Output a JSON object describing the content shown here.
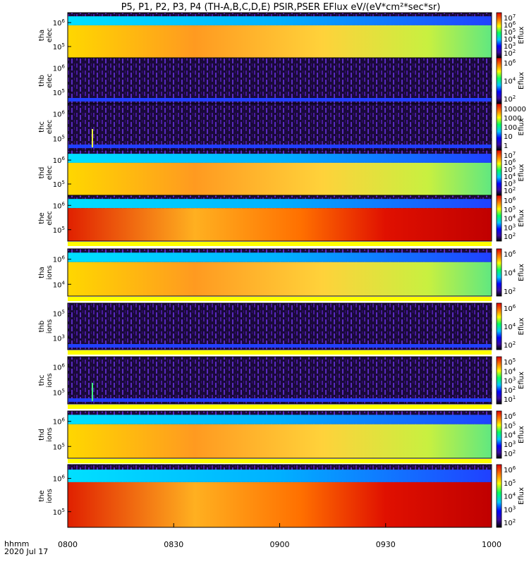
{
  "title": "P5, P1, P2, P3, P4 (TH-A,B,C,D,E) PSIR,PSER EFlux eV/(eV*cm²*sec*sr)",
  "x_axis": {
    "label_top": "hhmm",
    "label_bottom": "2020 Jul 17",
    "tick_labels": [
      "0800",
      "0830",
      "0900",
      "0930",
      "1000"
    ]
  },
  "chart_data": {
    "type": "heatmap",
    "x_range": [
      "08:00",
      "10:00"
    ],
    "colorbar_label": "Eflux",
    "panels": [
      {
        "label1": "tha",
        "label2": "elec",
        "y_ticks": [
          {
            "base": "10",
            "exp": "6"
          },
          {
            "base": "10",
            "exp": "5"
          }
        ],
        "cbar_ticks": [
          {
            "base": "10",
            "exp": "7"
          },
          {
            "base": "10",
            "exp": "6"
          },
          {
            "base": "10",
            "exp": "5"
          },
          {
            "base": "10",
            "exp": "4"
          },
          {
            "base": "10",
            "exp": "3"
          },
          {
            "base": "10",
            "exp": "2"
          }
        ],
        "bright": true
      },
      {
        "label1": "thb",
        "label2": "elec",
        "y_ticks": [
          {
            "base": "10",
            "exp": "6"
          },
          {
            "base": "10",
            "exp": "5"
          }
        ],
        "cbar_ticks": [
          {
            "base": "10",
            "exp": "6"
          },
          {
            "base": "10",
            "exp": "4"
          },
          {
            "base": "10",
            "exp": "2"
          }
        ],
        "bright": false
      },
      {
        "label1": "thc",
        "label2": "elec",
        "y_ticks": [
          {
            "base": "10",
            "exp": "6"
          },
          {
            "base": "10",
            "exp": "5"
          }
        ],
        "cbar_ticks": [
          {
            "base": "10000",
            "exp": ""
          },
          {
            "base": "1000",
            "exp": ""
          },
          {
            "base": "100",
            "exp": ""
          },
          {
            "base": "10",
            "exp": ""
          },
          {
            "base": "1",
            "exp": ""
          }
        ],
        "bright": false,
        "spike": true
      },
      {
        "label1": "thd",
        "label2": "elec",
        "y_ticks": [
          {
            "base": "10",
            "exp": "6"
          },
          {
            "base": "10",
            "exp": "5"
          }
        ],
        "cbar_ticks": [
          {
            "base": "10",
            "exp": "7"
          },
          {
            "base": "10",
            "exp": "6"
          },
          {
            "base": "10",
            "exp": "5"
          },
          {
            "base": "10",
            "exp": "4"
          },
          {
            "base": "10",
            "exp": "3"
          },
          {
            "base": "10",
            "exp": "2"
          }
        ],
        "bright": true
      },
      {
        "label1": "the",
        "label2": "elec",
        "y_ticks": [
          {
            "base": "10",
            "exp": "6"
          },
          {
            "base": "10",
            "exp": "5"
          }
        ],
        "cbar_ticks": [
          {
            "base": "10",
            "exp": "6"
          },
          {
            "base": "10",
            "exp": "5"
          },
          {
            "base": "10",
            "exp": "4"
          },
          {
            "base": "10",
            "exp": "3"
          },
          {
            "base": "10",
            "exp": "2"
          }
        ],
        "bright": true,
        "hot": true
      },
      {
        "label1": "tha",
        "label2": "ions",
        "y_ticks": [
          {
            "base": "10",
            "exp": "6"
          },
          {
            "base": "10",
            "exp": "4"
          }
        ],
        "cbar_ticks": [
          {
            "base": "10",
            "exp": "6"
          },
          {
            "base": "10",
            "exp": "4"
          },
          {
            "base": "10",
            "exp": "2"
          }
        ],
        "bright": true
      },
      {
        "label1": "thb",
        "label2": "ions",
        "y_ticks": [
          {
            "base": "10",
            "exp": "5"
          },
          {
            "base": "10",
            "exp": "3"
          }
        ],
        "cbar_ticks": [
          {
            "base": "10",
            "exp": "6"
          },
          {
            "base": "10",
            "exp": "4"
          },
          {
            "base": "10",
            "exp": "2"
          }
        ],
        "bright": false
      },
      {
        "label1": "thc",
        "label2": "ions",
        "y_ticks": [
          {
            "base": "10",
            "exp": "6"
          },
          {
            "base": "10",
            "exp": "5"
          }
        ],
        "cbar_ticks": [
          {
            "base": "10",
            "exp": "5"
          },
          {
            "base": "10",
            "exp": "4"
          },
          {
            "base": "10",
            "exp": "3"
          },
          {
            "base": "10",
            "exp": "2"
          },
          {
            "base": "10",
            "exp": "1"
          }
        ],
        "bright": false,
        "spike": true
      },
      {
        "label1": "thd",
        "label2": "ions",
        "y_ticks": [
          {
            "base": "10",
            "exp": "6"
          },
          {
            "base": "10",
            "exp": "5"
          }
        ],
        "cbar_ticks": [
          {
            "base": "10",
            "exp": "6"
          },
          {
            "base": "10",
            "exp": "5"
          },
          {
            "base": "10",
            "exp": "4"
          },
          {
            "base": "10",
            "exp": "3"
          },
          {
            "base": "10",
            "exp": "2"
          }
        ],
        "bright": true
      },
      {
        "label1": "the",
        "label2": "ions",
        "y_ticks": [
          {
            "base": "10",
            "exp": "6"
          },
          {
            "base": "10",
            "exp": "5"
          }
        ],
        "cbar_ticks": [
          {
            "base": "10",
            "exp": "6"
          },
          {
            "base": "10",
            "exp": "5"
          },
          {
            "base": "10",
            "exp": "4"
          },
          {
            "base": "10",
            "exp": "3"
          },
          {
            "base": "10",
            "exp": "2"
          }
        ],
        "bright": true,
        "hot": true
      }
    ]
  }
}
